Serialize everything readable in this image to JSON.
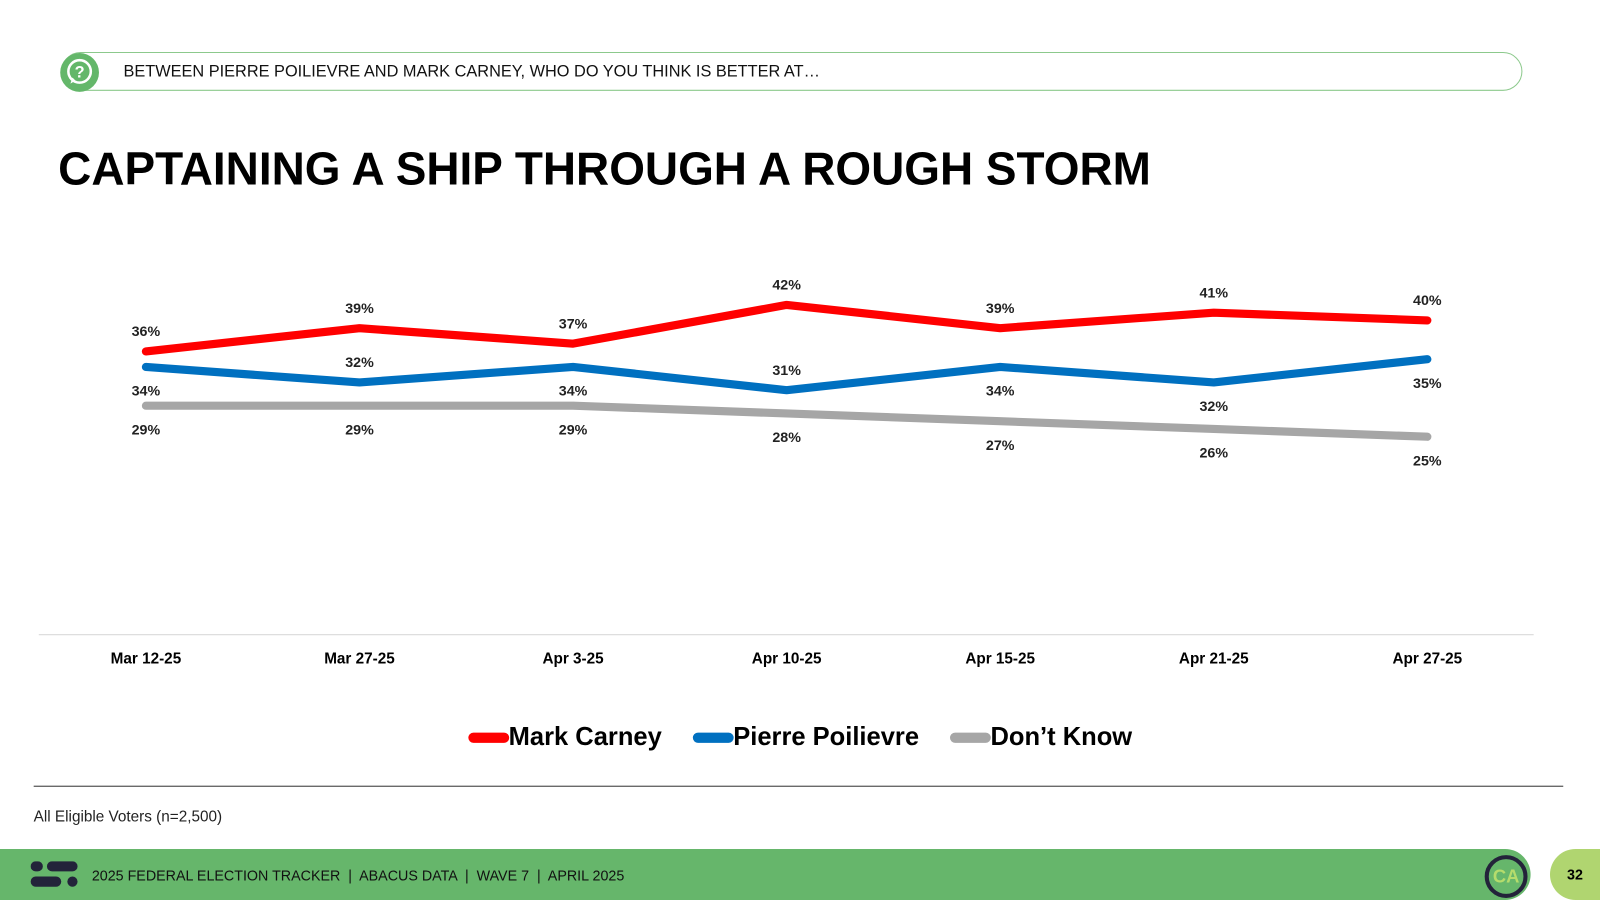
{
  "header": {
    "question": "BETWEEN PIERRE POILIEVRE AND MARK CARNEY, WHO DO YOU THINK IS BETTER AT…"
  },
  "chart_data": {
    "type": "line",
    "title": "CAPTAINING A SHIP THROUGH A ROUGH STORM",
    "categories": [
      "Mar 12-25",
      "Mar 27-25",
      "Apr 3-25",
      "Apr 10-25",
      "Apr 15-25",
      "Apr 21-25",
      "Apr 27-25"
    ],
    "series": [
      {
        "name": "Mark Carney",
        "color": "#ff0000",
        "values": [
          36,
          39,
          37,
          42,
          39,
          41,
          40
        ]
      },
      {
        "name": "Pierre Poilievre",
        "color": "#0070c0",
        "values": [
          34,
          32,
          34,
          31,
          34,
          32,
          35
        ]
      },
      {
        "name": "Don’t Know",
        "color": "#a6a6a6",
        "values": [
          29,
          29,
          29,
          28,
          27,
          26,
          25
        ]
      }
    ],
    "ylim": [
      0,
      45
    ],
    "grid": false,
    "legend": "bottom",
    "value_suffix": "%"
  },
  "note": "All Eligible Voters (n=2,500)",
  "footer": {
    "text": "2025 FEDERAL ELECTION TRACKER  |  ABACUS DATA  |  WAVE 7  |  APRIL 2025",
    "logo": "CA",
    "page": "32"
  }
}
